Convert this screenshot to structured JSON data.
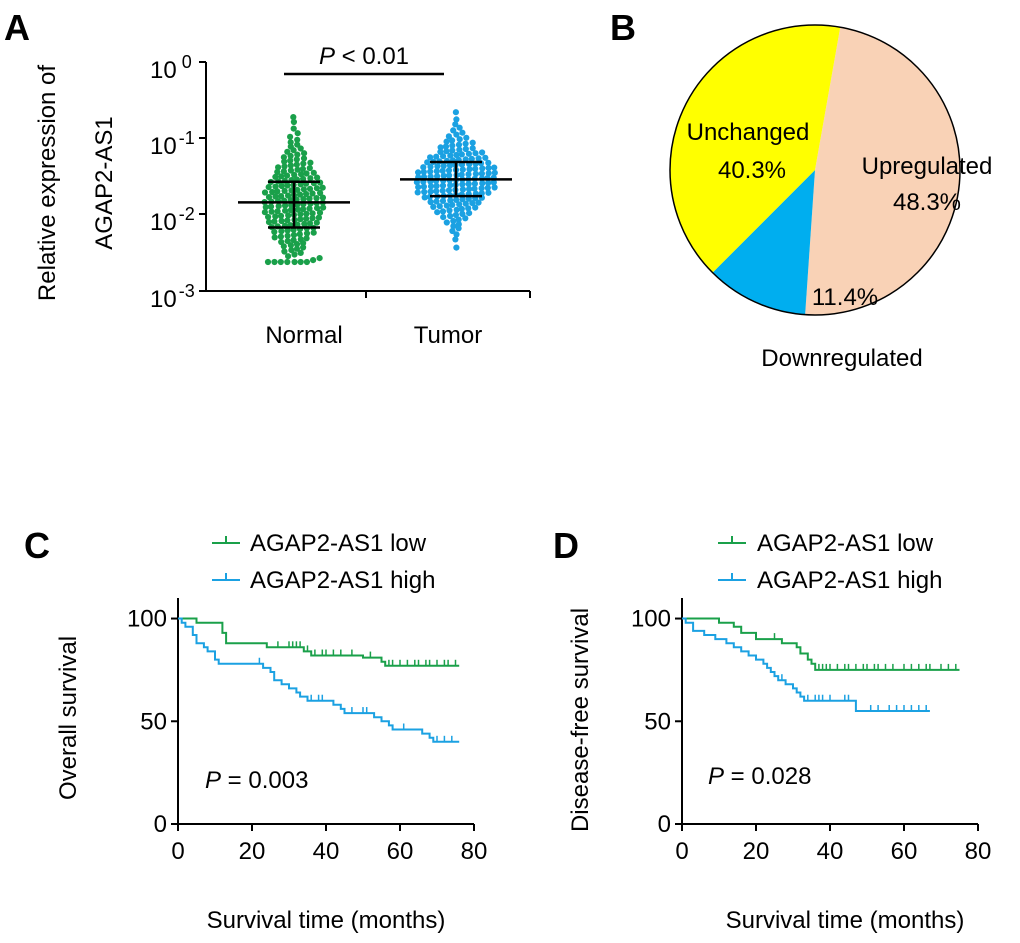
{
  "panel_letters": {
    "a": "A",
    "b": "B",
    "c": "C",
    "d": "D"
  },
  "chart_data": [
    {
      "panel": "A",
      "type": "scatter",
      "ylabel_line1": "Relative expression of",
      "ylabel_line2": "AGAP2-AS1",
      "yscale": "log",
      "ylim": [
        0.001,
        1
      ],
      "yticks": [
        {
          "base": "10",
          "exp": "0"
        },
        {
          "base": "10",
          "exp": "-1"
        },
        {
          "base": "10",
          "exp": "-2"
        },
        {
          "base": "10",
          "exp": "-3"
        }
      ],
      "categories": [
        "Normal",
        "Tumor"
      ],
      "annotation_p": "P",
      "annotation_rest": " < 0.01",
      "series": [
        {
          "category": "Normal",
          "color": "#1aa04a",
          "median": 0.0145,
          "q1": 0.0068,
          "q3": 0.027,
          "min": 0.0024,
          "max": 0.19,
          "n": 170
        },
        {
          "category": "Tumor",
          "color": "#1ba1e2",
          "median": 0.029,
          "q1": 0.0175,
          "q3": 0.049,
          "min": 0.0037,
          "max": 0.22,
          "n": 170
        }
      ]
    },
    {
      "panel": "B",
      "type": "pie",
      "slices": [
        {
          "label": "Upregulated",
          "value": 48.3,
          "value_label": "48.3%",
          "color": "#f9d2b6"
        },
        {
          "label": "Downregulated",
          "value": 11.4,
          "value_label": "11.4%",
          "color": "#00aeef"
        },
        {
          "label": "Unchanged",
          "value": 40.3,
          "value_label": "40.3%",
          "color": "#ffff00"
        }
      ]
    },
    {
      "panel": "C",
      "type": "line",
      "ylabel": "Overall survival",
      "xlabel": "Survival time (months)",
      "xlim": [
        0,
        80
      ],
      "ylim": [
        0,
        110
      ],
      "xticks": [
        "0",
        "20",
        "40",
        "60",
        "80"
      ],
      "yticks": [
        "0",
        "50",
        "100"
      ],
      "annotation_p": "P",
      "annotation_rest": " = 0.003",
      "series": [
        {
          "name": "AGAP2-AS1 low",
          "color": "#1aa04a",
          "steps": [
            [
              0,
              100
            ],
            [
              5,
              98
            ],
            [
              12,
              93
            ],
            [
              13,
              88
            ],
            [
              24,
              86
            ],
            [
              29,
              86
            ],
            [
              34,
              84
            ],
            [
              36,
              82
            ],
            [
              50,
              81
            ],
            [
              55,
              79
            ],
            [
              56,
              77
            ],
            [
              76,
              77
            ]
          ],
          "censored": [
            [
              27,
              86
            ],
            [
              30,
              86
            ],
            [
              31,
              86
            ],
            [
              32,
              86
            ],
            [
              33,
              86
            ],
            [
              35,
              84
            ],
            [
              37,
              82
            ],
            [
              39,
              82
            ],
            [
              40,
              82
            ],
            [
              42,
              82
            ],
            [
              44,
              82
            ],
            [
              47,
              82
            ],
            [
              52,
              81
            ],
            [
              57,
              77
            ],
            [
              58,
              77
            ],
            [
              60,
              77
            ],
            [
              62,
              77
            ],
            [
              64,
              77
            ],
            [
              65,
              77
            ],
            [
              67,
              77
            ],
            [
              68,
              77
            ],
            [
              70,
              77
            ],
            [
              72,
              77
            ],
            [
              73,
              77
            ],
            [
              75,
              77
            ]
          ]
        },
        {
          "name": "AGAP2-AS1 high",
          "color": "#1ba1e2",
          "steps": [
            [
              0,
              100
            ],
            [
              1,
              98
            ],
            [
              2,
              96
            ],
            [
              4,
              92
            ],
            [
              5,
              88
            ],
            [
              7,
              86
            ],
            [
              8,
              84
            ],
            [
              10,
              80
            ],
            [
              11,
              78
            ],
            [
              23,
              76
            ],
            [
              25,
              74
            ],
            [
              26,
              70
            ],
            [
              28,
              68
            ],
            [
              30,
              66
            ],
            [
              32,
              64
            ],
            [
              33,
              62
            ],
            [
              35,
              60
            ],
            [
              42,
              58
            ],
            [
              44,
              56
            ],
            [
              45,
              54
            ],
            [
              53,
              52
            ],
            [
              55,
              50
            ],
            [
              57,
              48
            ],
            [
              58,
              46
            ],
            [
              66,
              44
            ],
            [
              68,
              42
            ],
            [
              69,
              40
            ],
            [
              76,
              40
            ]
          ],
          "censored": [
            [
              22,
              78
            ],
            [
              36,
              60
            ],
            [
              38,
              60
            ],
            [
              39,
              60
            ],
            [
              47,
              54
            ],
            [
              50,
              54
            ],
            [
              51,
              54
            ],
            [
              61,
              46
            ],
            [
              70,
              40
            ],
            [
              72,
              40
            ],
            [
              74,
              40
            ]
          ]
        }
      ]
    },
    {
      "panel": "D",
      "type": "line",
      "ylabel": "Disease-free survival",
      "xlabel": "Survival time (months)",
      "xlim": [
        0,
        80
      ],
      "ylim": [
        0,
        110
      ],
      "xticks": [
        "0",
        "20",
        "40",
        "60",
        "80"
      ],
      "yticks": [
        "0",
        "50",
        "100"
      ],
      "annotation_p": "P",
      "annotation_rest": " = 0.028",
      "series": [
        {
          "name": "AGAP2-AS1 low",
          "color": "#1aa04a",
          "steps": [
            [
              0,
              100
            ],
            [
              8,
              100
            ],
            [
              10,
              98
            ],
            [
              14,
              96
            ],
            [
              16,
              93
            ],
            [
              20,
              90
            ],
            [
              27,
              88
            ],
            [
              31,
              86
            ],
            [
              32,
              83
            ],
            [
              34,
              80
            ],
            [
              35,
              78
            ],
            [
              36,
              75
            ],
            [
              75,
              75
            ]
          ],
          "censored": [
            [
              25,
              90
            ],
            [
              37,
              75
            ],
            [
              38,
              75
            ],
            [
              39,
              75
            ],
            [
              40,
              75
            ],
            [
              42,
              75
            ],
            [
              44,
              75
            ],
            [
              45,
              75
            ],
            [
              47,
              75
            ],
            [
              49,
              75
            ],
            [
              50,
              75
            ],
            [
              52,
              75
            ],
            [
              53,
              75
            ],
            [
              55,
              75
            ],
            [
              57,
              75
            ],
            [
              60,
              75
            ],
            [
              62,
              75
            ],
            [
              64,
              75
            ],
            [
              66,
              75
            ],
            [
              67,
              75
            ],
            [
              70,
              75
            ],
            [
              72,
              75
            ],
            [
              74,
              75
            ]
          ]
        },
        {
          "name": "AGAP2-AS1 high",
          "color": "#1ba1e2",
          "steps": [
            [
              0,
              100
            ],
            [
              1,
              98
            ],
            [
              3,
              94
            ],
            [
              6,
              92
            ],
            [
              9,
              90
            ],
            [
              12,
              88
            ],
            [
              14,
              86
            ],
            [
              16,
              84
            ],
            [
              18,
              82
            ],
            [
              20,
              80
            ],
            [
              22,
              78
            ],
            [
              23,
              76
            ],
            [
              24,
              74
            ],
            [
              25,
              72
            ],
            [
              26,
              70
            ],
            [
              28,
              68
            ],
            [
              30,
              66
            ],
            [
              31,
              64
            ],
            [
              32,
              62
            ],
            [
              33,
              60
            ],
            [
              47,
              55
            ],
            [
              67,
              55
            ]
          ],
          "censored": [
            [
              27,
              70
            ],
            [
              34,
              60
            ],
            [
              36,
              60
            ],
            [
              37,
              60
            ],
            [
              38,
              60
            ],
            [
              40,
              60
            ],
            [
              44,
              60
            ],
            [
              45,
              60
            ],
            [
              51,
              55
            ],
            [
              53,
              55
            ],
            [
              56,
              55
            ],
            [
              58,
              55
            ],
            [
              60,
              55
            ],
            [
              62,
              55
            ],
            [
              64,
              55
            ],
            [
              66,
              55
            ]
          ]
        }
      ]
    }
  ]
}
